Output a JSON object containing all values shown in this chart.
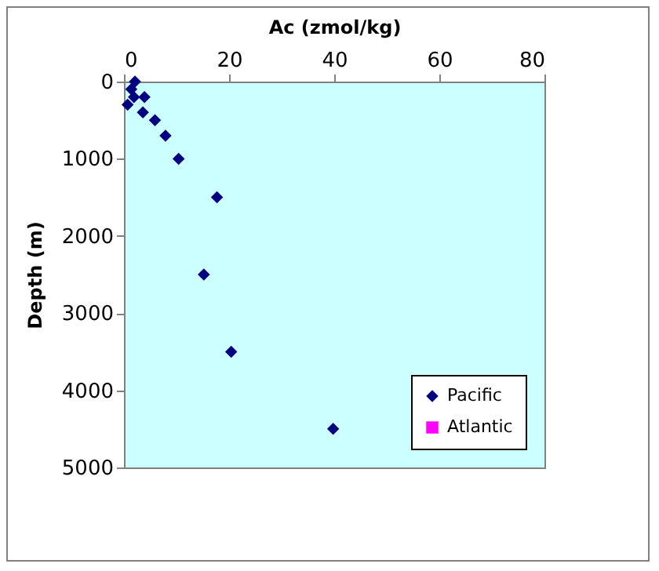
{
  "chart_data": {
    "type": "scatter",
    "xlabel": "Ac (zmol/kg)",
    "ylabel": "Depth (m)",
    "xlim": [
      0,
      80
    ],
    "xticks": [
      0,
      20,
      40,
      60,
      80
    ],
    "ylim": [
      5000,
      0
    ],
    "yticks": [
      0,
      1000,
      2000,
      3000,
      4000,
      5000
    ],
    "grid": false,
    "legend": "bottom right",
    "marker": "diamond",
    "series": [
      {
        "name": "Pacific",
        "color": "#000080",
        "x": [
          2.1,
          1.4,
          1.9,
          3.9,
          0.7,
          3.6,
          5.9,
          7.9,
          10.4,
          17.7,
          15.2,
          20.4,
          39.8
        ],
        "values": [
          0,
          100,
          200,
          200,
          300,
          400,
          500,
          700,
          1000,
          1500,
          2500,
          3500,
          4500
        ]
      },
      {
        "name": "Atlantic",
        "color": "#ff00ff",
        "marker": "square"
      }
    ]
  }
}
